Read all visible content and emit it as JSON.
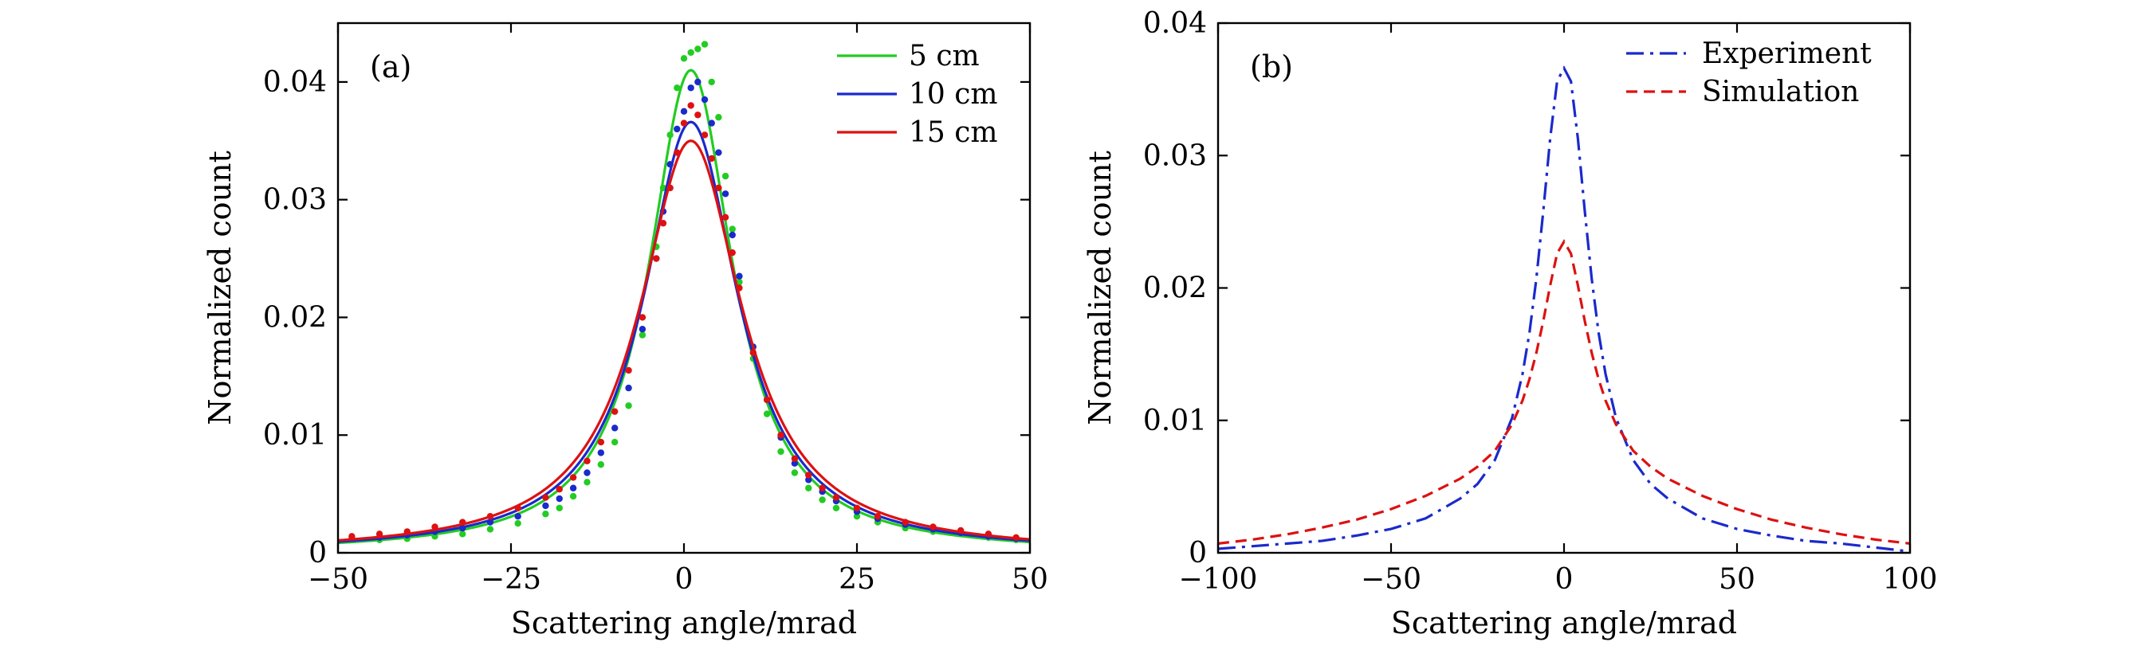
{
  "chart_data": [
    {
      "type": "scatter",
      "panel_label": "(a)",
      "xlabel": "Scattering angle/mrad",
      "ylabel": "Normalized count",
      "xlim": [
        -50,
        50
      ],
      "ylim": [
        0,
        0.045
      ],
      "xticks": [
        -50,
        -25,
        0,
        25,
        50
      ],
      "xtick_labels": [
        "−50",
        "−25",
        "0",
        "25",
        "50"
      ],
      "yticks": [
        0,
        0.01,
        0.02,
        0.03,
        0.04
      ],
      "ytick_labels": [
        "0",
        "0.01",
        "0.02",
        "0.03",
        "0.04"
      ],
      "legend_position": "top-right",
      "series": [
        {
          "name": "5 cm",
          "color": "#22cc22",
          "fit": {
            "peak": 0.041,
            "center": 1.0,
            "gamma": 7.4
          },
          "points": [
            [
              -48,
              0.0011
            ],
            [
              -44,
              0.0011
            ],
            [
              -40,
              0.0012
            ],
            [
              -36,
              0.0014
            ],
            [
              -32,
              0.0016
            ],
            [
              -28,
              0.002
            ],
            [
              -24,
              0.0025
            ],
            [
              -20,
              0.0033
            ],
            [
              -18,
              0.0038
            ],
            [
              -16,
              0.0048
            ],
            [
              -14,
              0.006
            ],
            [
              -12,
              0.0075
            ],
            [
              -10,
              0.0094
            ],
            [
              -8,
              0.0125
            ],
            [
              -6,
              0.0185
            ],
            [
              -4,
              0.026
            ],
            [
              -3,
              0.031
            ],
            [
              -2,
              0.0355
            ],
            [
              -1,
              0.0395
            ],
            [
              0,
              0.042
            ],
            [
              1,
              0.0425
            ],
            [
              2,
              0.0428
            ],
            [
              3,
              0.0432
            ],
            [
              4,
              0.04
            ],
            [
              5,
              0.037
            ],
            [
              6,
              0.032
            ],
            [
              7,
              0.0275
            ],
            [
              8,
              0.023
            ],
            [
              10,
              0.0165
            ],
            [
              12,
              0.0118
            ],
            [
              14,
              0.0086
            ],
            [
              16,
              0.0068
            ],
            [
              18,
              0.0055
            ],
            [
              20,
              0.0045
            ],
            [
              22,
              0.0038
            ],
            [
              25,
              0.0031
            ],
            [
              28,
              0.0026
            ],
            [
              32,
              0.0021
            ],
            [
              36,
              0.0018
            ],
            [
              40,
              0.0016
            ],
            [
              44,
              0.0013
            ],
            [
              48,
              0.0011
            ]
          ]
        },
        {
          "name": "10 cm",
          "color": "#1a2acc",
          "fit": {
            "peak": 0.0366,
            "center": 1.0,
            "gamma": 8.3
          },
          "points": [
            [
              -48,
              0.0012
            ],
            [
              -44,
              0.0013
            ],
            [
              -40,
              0.0015
            ],
            [
              -36,
              0.0018
            ],
            [
              -32,
              0.0021
            ],
            [
              -28,
              0.0026
            ],
            [
              -24,
              0.0031
            ],
            [
              -20,
              0.004
            ],
            [
              -18,
              0.0046
            ],
            [
              -16,
              0.0055
            ],
            [
              -14,
              0.0068
            ],
            [
              -12,
              0.0085
            ],
            [
              -10,
              0.0106
            ],
            [
              -8,
              0.014
            ],
            [
              -6,
              0.019
            ],
            [
              -4,
              0.025
            ],
            [
              -3,
              0.029
            ],
            [
              -2,
              0.033
            ],
            [
              -1,
              0.036
            ],
            [
              0,
              0.0375
            ],
            [
              1,
              0.0395
            ],
            [
              2,
              0.04
            ],
            [
              3,
              0.0385
            ],
            [
              4,
              0.0365
            ],
            [
              5,
              0.034
            ],
            [
              6,
              0.0305
            ],
            [
              7,
              0.027
            ],
            [
              8,
              0.0235
            ],
            [
              10,
              0.0175
            ],
            [
              12,
              0.013
            ],
            [
              14,
              0.0098
            ],
            [
              16,
              0.0076
            ],
            [
              18,
              0.0062
            ],
            [
              20,
              0.0052
            ],
            [
              22,
              0.0044
            ],
            [
              25,
              0.0035
            ],
            [
              28,
              0.0029
            ],
            [
              32,
              0.0024
            ],
            [
              36,
              0.002
            ],
            [
              40,
              0.0017
            ],
            [
              44,
              0.0014
            ],
            [
              48,
              0.0012
            ]
          ]
        },
        {
          "name": "15 cm",
          "color": "#dd1111",
          "fit": {
            "peak": 0.035,
            "center": 1.0,
            "gamma": 9.0
          },
          "points": [
            [
              -48,
              0.0014
            ],
            [
              -44,
              0.0016
            ],
            [
              -40,
              0.0018
            ],
            [
              -36,
              0.0022
            ],
            [
              -32,
              0.0026
            ],
            [
              -28,
              0.0031
            ],
            [
              -24,
              0.0038
            ],
            [
              -20,
              0.0047
            ],
            [
              -18,
              0.0054
            ],
            [
              -16,
              0.0064
            ],
            [
              -14,
              0.0078
            ],
            [
              -12,
              0.0094
            ],
            [
              -10,
              0.012
            ],
            [
              -8,
              0.0155
            ],
            [
              -6,
              0.02
            ],
            [
              -4,
              0.025
            ],
            [
              -3,
              0.028
            ],
            [
              -2,
              0.031
            ],
            [
              -1,
              0.034
            ],
            [
              0,
              0.0365
            ],
            [
              1,
              0.038
            ],
            [
              2,
              0.0372
            ],
            [
              3,
              0.0355
            ],
            [
              4,
              0.0335
            ],
            [
              5,
              0.031
            ],
            [
              6,
              0.0285
            ],
            [
              7,
              0.0255
            ],
            [
              8,
              0.0225
            ],
            [
              10,
              0.017
            ],
            [
              12,
              0.013
            ],
            [
              14,
              0.01
            ],
            [
              16,
              0.008
            ],
            [
              18,
              0.0066
            ],
            [
              20,
              0.0055
            ],
            [
              22,
              0.0047
            ],
            [
              25,
              0.0038
            ],
            [
              28,
              0.0031
            ],
            [
              32,
              0.0026
            ],
            [
              36,
              0.0022
            ],
            [
              40,
              0.0019
            ],
            [
              44,
              0.0016
            ],
            [
              48,
              0.0013
            ]
          ]
        }
      ]
    },
    {
      "type": "line",
      "panel_label": "(b)",
      "xlabel": "Scattering angle/mrad",
      "ylabel": "Normalized count",
      "xlim": [
        -100,
        100
      ],
      "ylim": [
        0,
        0.04
      ],
      "xticks": [
        -100,
        -50,
        0,
        50,
        100
      ],
      "xtick_labels": [
        "−100",
        "−50",
        "0",
        "50",
        "100"
      ],
      "yticks": [
        0,
        0.01,
        0.02,
        0.03,
        0.04
      ],
      "ytick_labels": [
        "0",
        "0.01",
        "0.02",
        "0.03",
        "0.04"
      ],
      "legend_position": "top-right",
      "series": [
        {
          "name": "Experiment",
          "color": "#1a2acc",
          "line_style": "dash-dot",
          "x": [
            -100,
            -90,
            -80,
            -70,
            -60,
            -50,
            -40,
            -30,
            -25,
            -20,
            -15,
            -12,
            -10,
            -8,
            -6,
            -4,
            -2,
            0,
            2,
            4,
            6,
            8,
            10,
            12,
            15,
            20,
            25,
            30,
            40,
            50,
            60,
            70,
            80,
            90,
            100
          ],
          "y": [
            0.0003,
            0.0005,
            0.0007,
            0.0009,
            0.0013,
            0.0018,
            0.0026,
            0.0041,
            0.0052,
            0.007,
            0.0102,
            0.0135,
            0.0166,
            0.0207,
            0.0258,
            0.0313,
            0.0356,
            0.0366,
            0.0356,
            0.0313,
            0.0258,
            0.0207,
            0.0166,
            0.0135,
            0.0102,
            0.007,
            0.0052,
            0.0041,
            0.0026,
            0.0018,
            0.0013,
            0.0009,
            0.0007,
            0.0004,
            0.0001
          ]
        },
        {
          "name": "Simulation",
          "color": "#dd1111",
          "line_style": "dashed",
          "x": [
            -100,
            -90,
            -80,
            -70,
            -60,
            -50,
            -40,
            -30,
            -25,
            -20,
            -15,
            -12,
            -10,
            -8,
            -6,
            -4,
            -2,
            0,
            2,
            4,
            6,
            8,
            10,
            12,
            15,
            20,
            25,
            30,
            40,
            50,
            60,
            70,
            80,
            90,
            100
          ],
          "y": [
            0.0007,
            0.001,
            0.0014,
            0.0019,
            0.0025,
            0.0033,
            0.0043,
            0.0056,
            0.0065,
            0.0077,
            0.0097,
            0.0115,
            0.0131,
            0.0151,
            0.0175,
            0.0202,
            0.0226,
            0.0235,
            0.0226,
            0.0202,
            0.0175,
            0.0151,
            0.0131,
            0.0115,
            0.0097,
            0.0077,
            0.0065,
            0.0056,
            0.0043,
            0.0033,
            0.0025,
            0.0019,
            0.0014,
            0.001,
            0.0007
          ]
        }
      ]
    }
  ]
}
